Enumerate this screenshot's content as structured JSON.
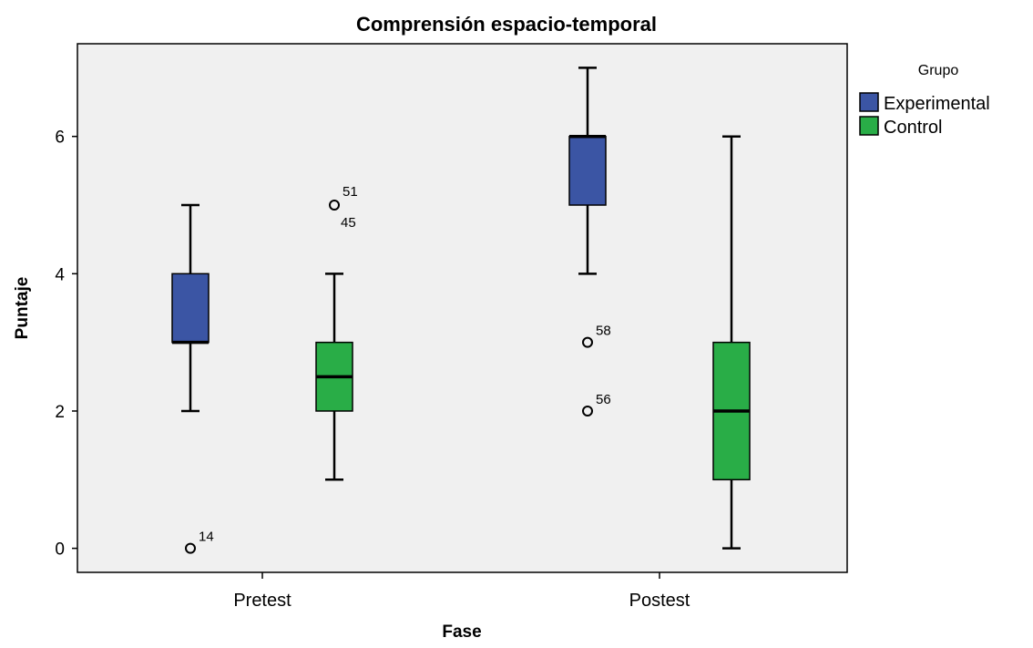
{
  "chart_data": {
    "type": "boxplot",
    "title": "Comprensión espacio-temporal",
    "xlabel": "Fase",
    "ylabel": "Puntaje",
    "ylim": [
      -0.35,
      7.35
    ],
    "yticks": [
      0,
      2,
      4,
      6
    ],
    "ytick_labels": [
      "0",
      "2",
      "4",
      "6"
    ],
    "categories": [
      "Pretest",
      "Postest"
    ],
    "legend": {
      "title": "Grupo",
      "position": "right"
    },
    "grid": false,
    "series": [
      {
        "name": "Experimental",
        "color": "#3b55a4",
        "boxes": [
          {
            "category": "Pretest",
            "min": 2,
            "q1": 3,
            "median": 3,
            "q3": 4,
            "max": 5,
            "outliers": [
              {
                "value": 0,
                "label": "14"
              }
            ]
          },
          {
            "category": "Postest",
            "min": 4,
            "q1": 5,
            "median": 6,
            "q3": 6,
            "max": 7,
            "outliers": [
              {
                "value": 3,
                "label": "58"
              },
              {
                "value": 2,
                "label": "56"
              }
            ]
          }
        ]
      },
      {
        "name": "Control",
        "color": "#29ad47",
        "boxes": [
          {
            "category": "Pretest",
            "min": 1,
            "q1": 2,
            "median": 2.5,
            "q3": 3,
            "max": 4,
            "outliers": [
              {
                "value": 5,
                "labels": [
                  "51",
                  "45"
                ]
              }
            ]
          },
          {
            "category": "Postest",
            "min": 0,
            "q1": 1,
            "median": 2,
            "q3": 3,
            "max": 6,
            "outliers": []
          }
        ]
      }
    ]
  }
}
